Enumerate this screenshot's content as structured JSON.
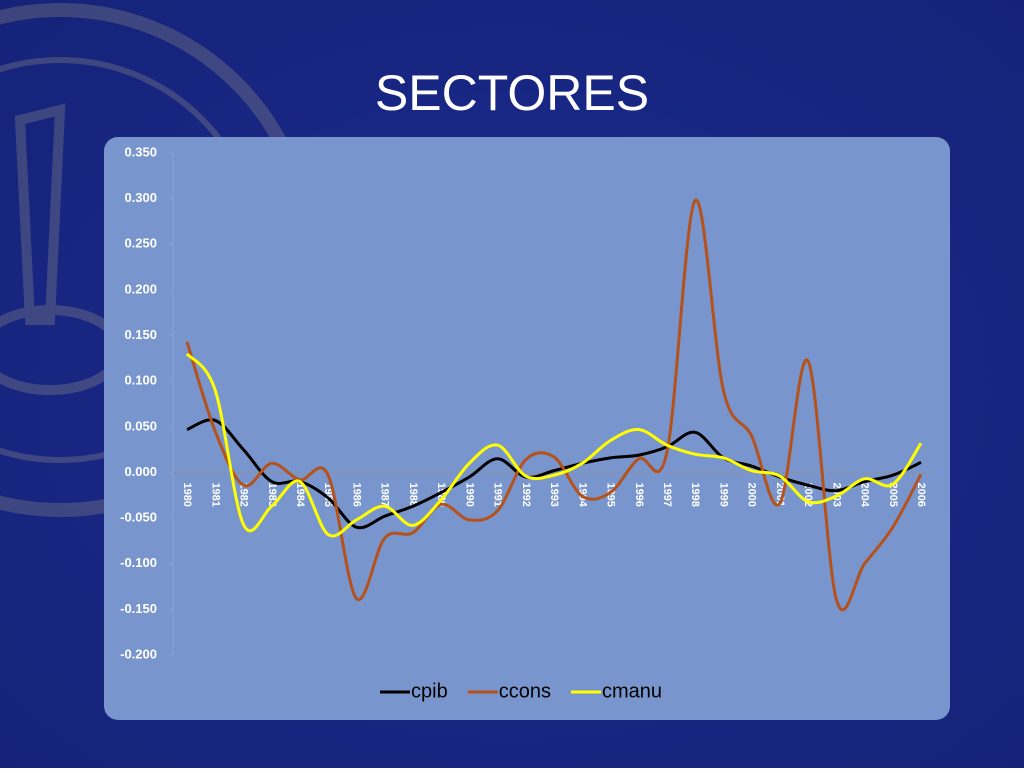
{
  "title": "SECTORES",
  "chart_data": {
    "type": "line",
    "categories": [
      "1980",
      "1981",
      "1982",
      "1983",
      "1984",
      "1985",
      "1986",
      "1987",
      "1988",
      "1989",
      "1990",
      "1991",
      "1992",
      "1993",
      "1994",
      "1995",
      "1996",
      "1997",
      "1998",
      "1999",
      "2000",
      "2001",
      "2002",
      "2003",
      "2004",
      "2005",
      "2006"
    ],
    "series": [
      {
        "name": "cpib",
        "color": "#000000",
        "values": [
          0.047,
          0.057,
          0.025,
          -0.01,
          -0.01,
          -0.028,
          -0.06,
          -0.048,
          -0.037,
          -0.022,
          -0.005,
          0.015,
          -0.005,
          0.002,
          0.01,
          0.016,
          0.019,
          0.028,
          0.044,
          0.016,
          0.007,
          -0.005,
          -0.014,
          -0.02,
          -0.01,
          -0.003,
          0.011
        ]
      },
      {
        "name": "ccons",
        "color": "#b5521c",
        "values": [
          0.143,
          0.045,
          -0.014,
          0.01,
          -0.008,
          -0.003,
          -0.138,
          -0.072,
          -0.066,
          -0.035,
          -0.052,
          -0.042,
          0.014,
          0.017,
          -0.026,
          -0.022,
          0.015,
          0.022,
          0.298,
          0.09,
          0.04,
          -0.034,
          0.122,
          -0.139,
          -0.1,
          -0.06,
          -0.002
        ]
      },
      {
        "name": "cmanu",
        "color": "#ffff00",
        "values": [
          0.13,
          0.09,
          -0.057,
          -0.037,
          -0.01,
          -0.068,
          -0.052,
          -0.037,
          -0.058,
          -0.03,
          0.01,
          0.03,
          -0.004,
          -0.003,
          0.01,
          0.035,
          0.047,
          0.03,
          0.02,
          0.016,
          0.002,
          -0.004,
          -0.032,
          -0.026,
          -0.007,
          -0.013,
          0.032
        ]
      }
    ],
    "ylim": [
      -0.2,
      0.35
    ],
    "yticks": [
      {
        "value": -0.2,
        "label": "-0.200"
      },
      {
        "value": -0.15,
        "label": "-0.150"
      },
      {
        "value": -0.1,
        "label": "-0.100"
      },
      {
        "value": -0.05,
        "label": "-0.050"
      },
      {
        "value": 0,
        "label": "0.000"
      },
      {
        "value": 0.05,
        "label": "0.050"
      },
      {
        "value": 0.1,
        "label": "0.100"
      },
      {
        "value": 0.15,
        "label": "0.150"
      },
      {
        "value": 0.2,
        "label": "0.200"
      },
      {
        "value": 0.25,
        "label": "0.250"
      },
      {
        "value": 0.3,
        "label": "0.300"
      },
      {
        "value": 0.35,
        "label": "0.350"
      }
    ],
    "legend": "bottom"
  }
}
